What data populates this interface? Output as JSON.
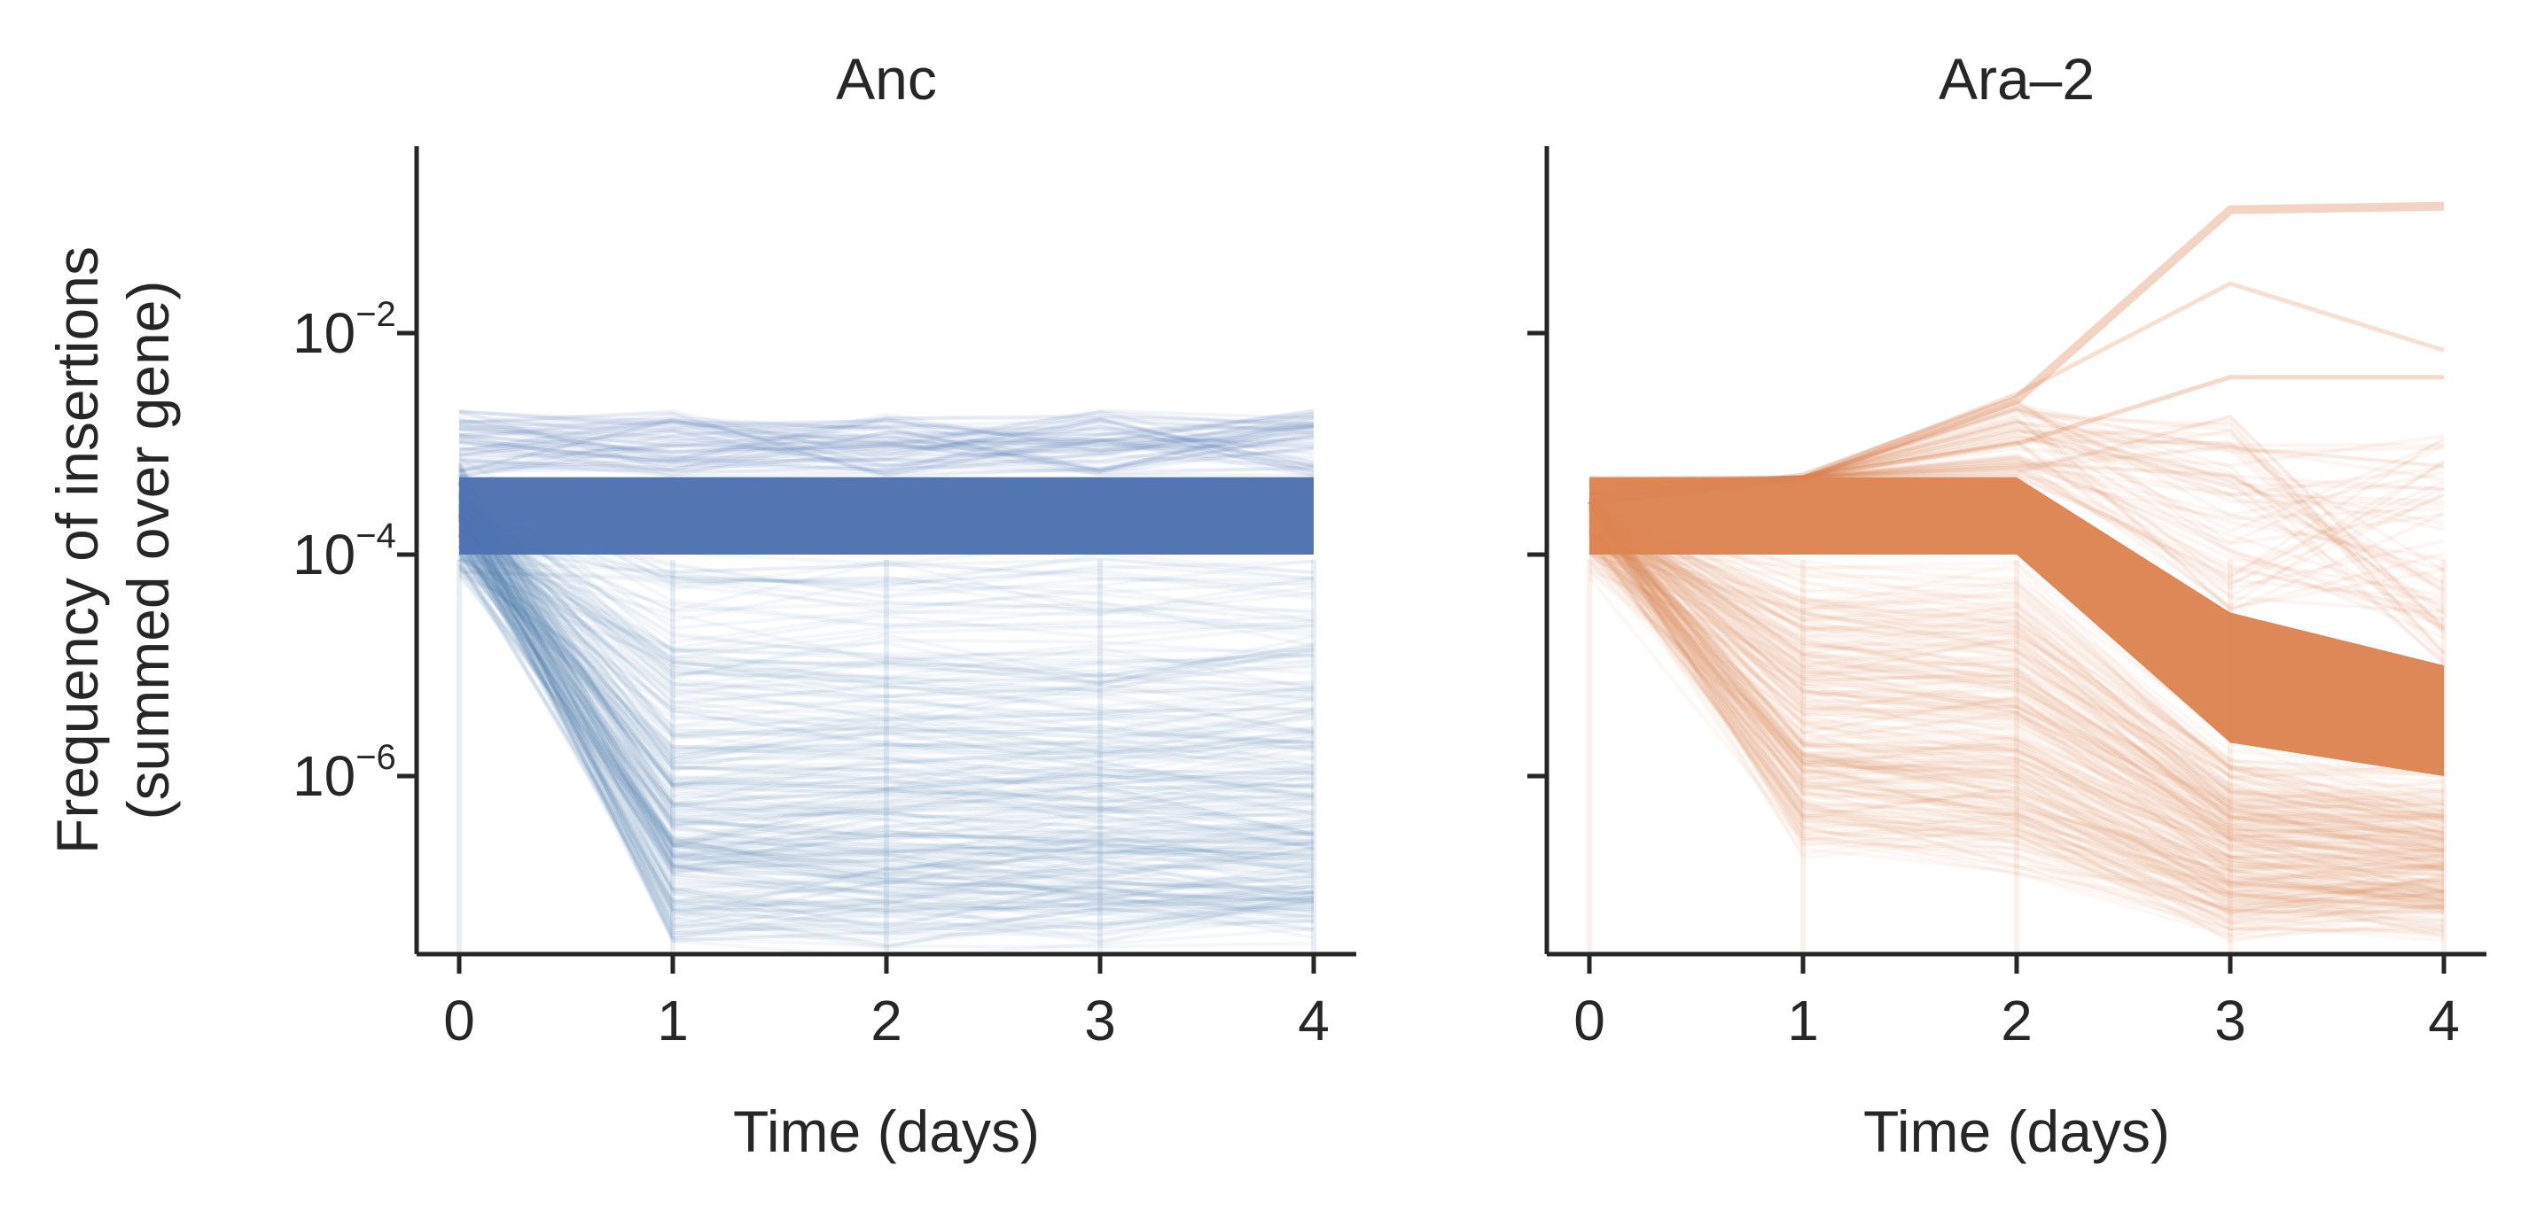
{
  "chart_data": [
    {
      "type": "line",
      "title": "Anc",
      "xlabel": "Time (days)",
      "ylabel": [
        "Frequency of insertions",
        "(summed over gene)"
      ],
      "x_ticks": [
        0,
        1,
        2,
        3,
        4
      ],
      "y_scale": "log",
      "y_ticks": [
        1e-06,
        0.0001,
        0.01
      ],
      "y_tick_labels": [
        "10",
        "10",
        "10"
      ],
      "y_tick_exponents": [
        "−6",
        "−4",
        "−2"
      ],
      "ylim": [
        3e-08,
        0.3
      ],
      "xlim": [
        -0.2,
        4.2
      ],
      "color": "#4c72b0",
      "grid": false,
      "description_bands": {
        "dense_band_low": [
          0.0001,
          0.0001,
          0.0001,
          0.0001,
          0.0001
        ],
        "dense_band_high": [
          0.0005,
          0.0005,
          0.0005,
          0.0005,
          0.0005
        ],
        "max_trace": [
          0.002,
          0.002,
          0.002,
          0.002,
          0.002
        ],
        "min_trace": [
          0.0001,
          4e-08,
          4e-08,
          4e-08,
          4e-08
        ]
      }
    },
    {
      "type": "line",
      "title": "Ara–2",
      "xlabel": "Time (days)",
      "ylabel": "",
      "x_ticks": [
        0,
        1,
        2,
        3,
        4
      ],
      "y_scale": "log",
      "y_ticks": [
        1e-06,
        0.0001,
        0.01
      ],
      "ylim": [
        3e-08,
        0.3
      ],
      "xlim": [
        -0.2,
        4.2
      ],
      "color": "#dd8452",
      "grid": false,
      "description_bands": {
        "dense_band_low": [
          0.0001,
          0.0001,
          0.0001,
          2e-06,
          1e-06
        ],
        "dense_band_high": [
          0.0005,
          0.0005,
          0.0005,
          3e-05,
          1e-05
        ],
        "top_trace": [
          0.0003,
          0.0005,
          0.0025,
          0.13,
          0.14
        ],
        "min_trace": [
          0.0001,
          3e-07,
          2e-07,
          5e-08,
          5e-08
        ]
      }
    }
  ]
}
